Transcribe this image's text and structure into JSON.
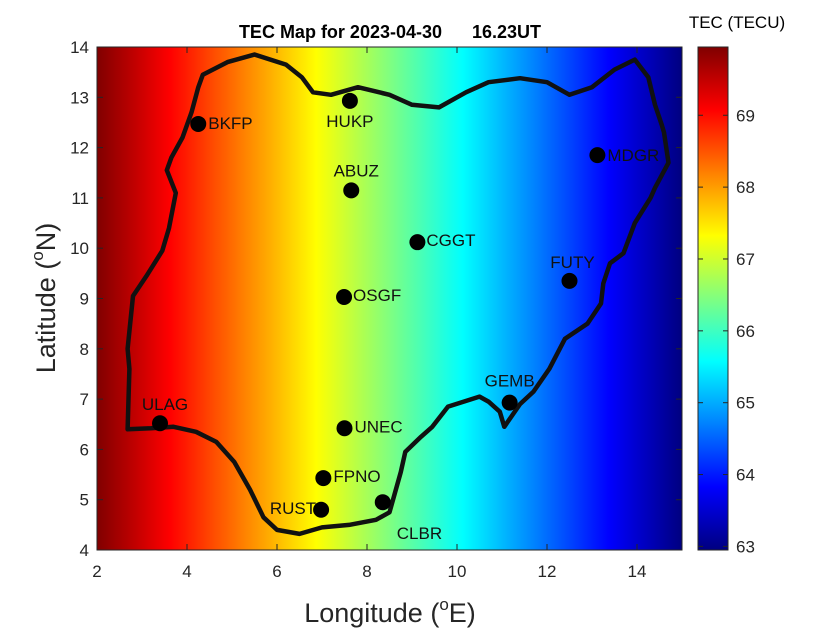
{
  "chart_data": {
    "type": "heatmap",
    "title": "TEC Map for 2023-04-30      16.23UT",
    "xlabel": "Longitude (",
    "xlabel_sup": "o",
    "xlabel_end": "E)",
    "ylabel": "Latitude (",
    "ylabel_sup": "o",
    "ylabel_end": "N)",
    "xlim": [
      2,
      15
    ],
    "ylim": [
      4,
      14
    ],
    "xticks": [
      2,
      4,
      6,
      8,
      10,
      12,
      14
    ],
    "yticks": [
      4,
      5,
      6,
      7,
      8,
      9,
      10,
      11,
      12,
      13,
      14
    ],
    "colorbar": {
      "label": "TEC (TECU)",
      "range": [
        62.95,
        69.95
      ],
      "ticks": [
        63,
        64,
        65,
        66,
        67,
        68,
        69
      ],
      "colormap": "jet",
      "orientation": "right"
    },
    "field": {
      "description": "TEC decreases with longitude",
      "lon": [
        2,
        15
      ],
      "tec": [
        69.95,
        62.95
      ]
    },
    "stations": [
      {
        "name": "BKFP",
        "lon": 4.25,
        "lat": 12.47
      },
      {
        "name": "HUKP",
        "lon": 7.62,
        "lat": 12.93
      },
      {
        "name": "MDGR",
        "lon": 13.12,
        "lat": 11.85
      },
      {
        "name": "ABUZ",
        "lon": 7.65,
        "lat": 11.15
      },
      {
        "name": "CGGT",
        "lon": 9.12,
        "lat": 10.12
      },
      {
        "name": "FUTY",
        "lon": 12.5,
        "lat": 9.35
      },
      {
        "name": "OSGF",
        "lon": 7.49,
        "lat": 9.03
      },
      {
        "name": "GEMB",
        "lon": 11.17,
        "lat": 6.93
      },
      {
        "name": "ULAG",
        "lon": 3.4,
        "lat": 6.52
      },
      {
        "name": "UNEC",
        "lon": 7.5,
        "lat": 6.42
      },
      {
        "name": "FPNO",
        "lon": 7.03,
        "lat": 5.43
      },
      {
        "name": "RUST",
        "lon": 6.98,
        "lat": 4.8
      },
      {
        "name": "CLBR",
        "lon": 8.35,
        "lat": 4.95
      }
    ],
    "boundary_lonlat": [
      [
        2.68,
        6.4
      ],
      [
        2.72,
        7.6
      ],
      [
        2.68,
        8.0
      ],
      [
        2.8,
        9.05
      ],
      [
        3.1,
        9.45
      ],
      [
        3.45,
        9.95
      ],
      [
        3.6,
        10.4
      ],
      [
        3.75,
        11.1
      ],
      [
        3.55,
        11.55
      ],
      [
        3.65,
        11.8
      ],
      [
        3.9,
        12.2
      ],
      [
        4.1,
        12.7
      ],
      [
        4.25,
        13.2
      ],
      [
        4.35,
        13.45
      ],
      [
        4.9,
        13.7
      ],
      [
        5.5,
        13.85
      ],
      [
        6.2,
        13.65
      ],
      [
        6.55,
        13.4
      ],
      [
        6.8,
        13.1
      ],
      [
        7.2,
        13.05
      ],
      [
        7.8,
        13.2
      ],
      [
        8.5,
        13.05
      ],
      [
        9.0,
        12.85
      ],
      [
        9.6,
        12.8
      ],
      [
        10.2,
        13.1
      ],
      [
        10.7,
        13.3
      ],
      [
        11.4,
        13.38
      ],
      [
        12.0,
        13.3
      ],
      [
        12.5,
        13.05
      ],
      [
        13.0,
        13.2
      ],
      [
        13.5,
        13.55
      ],
      [
        13.95,
        13.75
      ],
      [
        14.25,
        13.4
      ],
      [
        14.4,
        12.85
      ],
      [
        14.55,
        12.45
      ],
      [
        14.6,
        12.3
      ],
      [
        14.7,
        11.7
      ],
      [
        14.4,
        11.2
      ],
      [
        14.3,
        11.0
      ],
      [
        13.95,
        10.5
      ],
      [
        13.7,
        9.9
      ],
      [
        13.4,
        9.7
      ],
      [
        13.25,
        9.3
      ],
      [
        13.2,
        8.9
      ],
      [
        12.9,
        8.5
      ],
      [
        12.4,
        8.2
      ],
      [
        12.05,
        7.6
      ],
      [
        11.7,
        7.15
      ],
      [
        11.4,
        6.9
      ],
      [
        11.05,
        6.45
      ],
      [
        10.95,
        6.75
      ],
      [
        10.7,
        6.95
      ],
      [
        10.5,
        7.05
      ],
      [
        10.15,
        6.95
      ],
      [
        9.8,
        6.85
      ],
      [
        9.45,
        6.45
      ],
      [
        9.2,
        6.25
      ],
      [
        8.85,
        5.95
      ],
      [
        8.75,
        5.55
      ],
      [
        8.5,
        4.75
      ],
      [
        8.2,
        4.6
      ],
      [
        7.6,
        4.5
      ],
      [
        7.0,
        4.45
      ],
      [
        6.5,
        4.32
      ],
      [
        6.0,
        4.4
      ],
      [
        5.7,
        4.65
      ],
      [
        5.4,
        5.2
      ],
      [
        5.05,
        5.75
      ],
      [
        4.65,
        6.15
      ],
      [
        4.2,
        6.35
      ],
      [
        3.7,
        6.45
      ],
      [
        3.2,
        6.42
      ],
      [
        2.68,
        6.4
      ]
    ]
  }
}
